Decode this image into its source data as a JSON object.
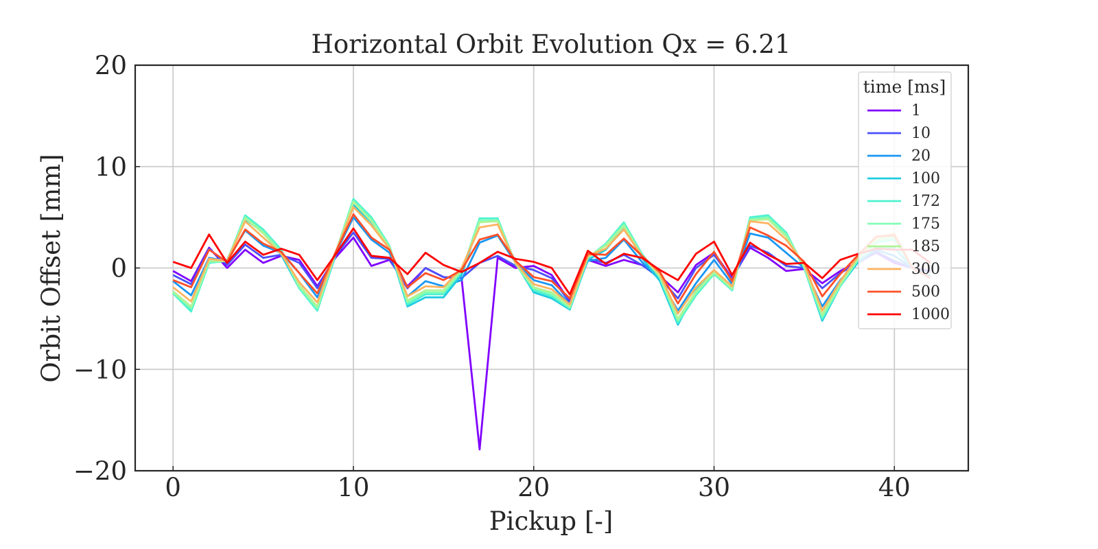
{
  "chart_data": {
    "type": "line",
    "title": "Horizontal Orbit Evolution Qx = 6.21",
    "xlabel": "Pickup [-]",
    "ylabel": "Orbit Offset [mm]",
    "xlim": [
      -2.1,
      44.1
    ],
    "ylim": [
      -20,
      20
    ],
    "xticks": [
      0,
      10,
      20,
      30,
      40
    ],
    "yticks": [
      -20,
      -10,
      0,
      10,
      20
    ],
    "xtick_labels": [
      "0",
      "10",
      "20",
      "30",
      "40"
    ],
    "ytick_labels": [
      "−20",
      "−10",
      "0",
      "10",
      "20"
    ],
    "grid": true,
    "legend": {
      "title": "time [ms]",
      "placement": "top-right"
    },
    "x": [
      0,
      1,
      2,
      3,
      4,
      5,
      6,
      7,
      8,
      9,
      10,
      11,
      12,
      13,
      14,
      15,
      16,
      17,
      18,
      19,
      20,
      21,
      22,
      23,
      24,
      25,
      26,
      27,
      28,
      29,
      30,
      31,
      32,
      33,
      34,
      35,
      36,
      37,
      38,
      39,
      40,
      41,
      42
    ],
    "series": [
      {
        "name": "1",
        "color": "#8000ff",
        "values": [
          -0.3,
          -1.3,
          2.0,
          0.0,
          1.8,
          0.5,
          1.2,
          0.8,
          -1.8,
          1.0,
          3.0,
          0.2,
          0.8,
          -1.8,
          0.0,
          -0.9,
          -1.0,
          -17.9,
          1.0,
          0.0,
          0.2,
          -0.7,
          -3.3,
          0.8,
          0.2,
          0.8,
          0.3,
          -0.8,
          -2.4,
          0.3,
          1.5,
          -1.0,
          2.0,
          1.0,
          -0.3,
          -0.1,
          -1.5,
          -0.3,
          0.6,
          1.5,
          0.5,
          0.0,
          -0.3
        ]
      },
      {
        "name": "10",
        "color": "#4b4ffc",
        "values": [
          -0.7,
          -1.6,
          1.9,
          0.3,
          2.3,
          1.0,
          1.3,
          0.5,
          -2.0,
          1.2,
          3.5,
          1.0,
          0.9,
          -2.0,
          0.0,
          -0.9,
          -1.0,
          0.5,
          1.2,
          0.2,
          -0.2,
          -1.0,
          -3.4,
          0.9,
          0.5,
          1.3,
          0.3,
          -1.0,
          -3.0,
          0.0,
          1.3,
          -1.1,
          2.2,
          1.5,
          0.2,
          0.0,
          -2.0,
          -0.5,
          0.5,
          1.6,
          0.7,
          0.0,
          -0.4
        ]
      },
      {
        "name": "20",
        "color": "#1996f3",
        "values": [
          -1.3,
          -2.7,
          1.0,
          0.7,
          3.7,
          2.2,
          1.5,
          -0.5,
          -2.9,
          1.4,
          5.0,
          2.8,
          1.5,
          -2.8,
          -1.3,
          -1.8,
          -1.2,
          2.5,
          3.2,
          0.5,
          -1.2,
          -1.7,
          -3.6,
          0.7,
          1.0,
          2.8,
          0.6,
          -1.2,
          -4.2,
          -1.5,
          0.8,
          -1.6,
          3.4,
          3.0,
          1.5,
          0.0,
          -3.8,
          -1.2,
          0.7,
          1.8,
          1.2,
          0.0,
          -0.8
        ]
      },
      {
        "name": "100",
        "color": "#1ecbe1",
        "values": [
          -2.3,
          -4.2,
          0.5,
          0.8,
          4.8,
          3.5,
          1.3,
          -2.0,
          -4.2,
          1.2,
          6.2,
          4.5,
          2.0,
          -3.8,
          -2.9,
          -2.9,
          -0.7,
          4.6,
          4.6,
          0.5,
          -2.4,
          -3.0,
          -4.1,
          0.8,
          1.8,
          4.0,
          1.0,
          -1.3,
          -5.6,
          -2.2,
          -0.3,
          -2.2,
          4.8,
          5.0,
          3.3,
          0.0,
          -5.2,
          -1.8,
          0.6,
          2.0,
          2.0,
          0.0,
          -1.0
        ]
      },
      {
        "name": "172",
        "color": "#4df3ce",
        "values": [
          -2.5,
          -4.3,
          0.5,
          0.7,
          5.2,
          3.8,
          1.8,
          -2.0,
          -4.2,
          1.4,
          6.8,
          5.0,
          2.2,
          -3.6,
          -2.6,
          -2.6,
          -0.4,
          4.9,
          4.9,
          0.4,
          -2.2,
          -2.8,
          -4.0,
          1.0,
          2.4,
          4.5,
          1.4,
          -1.0,
          -5.4,
          -2.7,
          -0.6,
          -2.2,
          5.0,
          5.2,
          3.5,
          0.0,
          -5.0,
          -1.8,
          0.8,
          2.5,
          2.8,
          0.0,
          -1.0
        ]
      },
      {
        "name": "175",
        "color": "#80ffb4",
        "values": [
          -2.4,
          -4.0,
          0.6,
          0.7,
          5.0,
          3.6,
          1.6,
          -1.9,
          -4.0,
          1.4,
          6.6,
          4.8,
          2.1,
          -3.4,
          -2.4,
          -2.4,
          -0.3,
          4.7,
          4.7,
          0.4,
          -2.0,
          -2.6,
          -3.9,
          1.0,
          2.3,
          4.3,
          1.3,
          -0.9,
          -5.2,
          -2.5,
          -0.5,
          -2.1,
          4.8,
          5.0,
          3.3,
          0.1,
          -4.8,
          -1.7,
          0.9,
          2.6,
          3.0,
          0.0,
          -1.0
        ]
      },
      {
        "name": "185",
        "color": "#b2f396",
        "values": [
          -2.3,
          -3.8,
          0.7,
          0.7,
          4.9,
          3.4,
          1.5,
          -1.7,
          -3.8,
          1.4,
          6.5,
          4.6,
          2.0,
          -3.2,
          -2.2,
          -2.2,
          -0.2,
          4.5,
          4.6,
          0.4,
          -1.9,
          -2.4,
          -3.8,
          1.1,
          2.2,
          4.1,
          1.2,
          -0.8,
          -5.0,
          -2.3,
          -0.4,
          -2.0,
          4.7,
          4.8,
          3.1,
          0.2,
          -4.6,
          -1.6,
          1.0,
          2.8,
          3.2,
          0.0,
          -1.0
        ]
      },
      {
        "name": "300",
        "color": "#ffb360",
        "values": [
          -1.9,
          -3.3,
          0.9,
          0.7,
          4.6,
          3.0,
          1.4,
          -1.4,
          -3.4,
          1.5,
          6.0,
          4.2,
          1.9,
          -2.8,
          -1.8,
          -1.9,
          0.0,
          4.0,
          4.3,
          0.5,
          -1.6,
          -2.1,
          -3.6,
          1.2,
          1.9,
          3.8,
          1.2,
          -0.6,
          -4.5,
          -1.9,
          -0.2,
          -1.8,
          4.6,
          4.4,
          2.8,
          0.4,
          -4.2,
          -1.3,
          1.2,
          3.0,
          3.4,
          0.0,
          -1.0
        ]
      },
      {
        "name": "500",
        "color": "#ff4f28",
        "values": [
          -1.2,
          -1.9,
          1.8,
          0.6,
          3.8,
          2.4,
          1.6,
          -0.5,
          -2.5,
          1.5,
          5.3,
          3.0,
          1.8,
          -1.9,
          -0.5,
          -1.2,
          -0.2,
          2.8,
          3.3,
          0.7,
          -0.9,
          -1.3,
          -3.0,
          1.4,
          1.3,
          2.9,
          1.2,
          -0.4,
          -3.5,
          -0.6,
          1.6,
          -1.3,
          4.0,
          3.2,
          2.2,
          0.6,
          -2.8,
          -0.6,
          1.3,
          3.1,
          3.2,
          0.0,
          -1.0
        ]
      },
      {
        "name": "1000",
        "color": "#ff0000",
        "values": [
          0.6,
          0.0,
          3.3,
          0.5,
          2.6,
          1.3,
          1.9,
          1.3,
          -1.2,
          1.3,
          3.9,
          1.2,
          1.0,
          -0.6,
          1.5,
          0.3,
          -0.4,
          0.5,
          1.6,
          0.9,
          0.6,
          0.0,
          -2.6,
          1.7,
          0.4,
          1.4,
          1.0,
          -0.2,
          -1.2,
          1.4,
          2.6,
          -0.7,
          2.5,
          1.3,
          0.4,
          0.5,
          -1.0,
          0.8,
          1.4,
          1.9,
          1.8,
          1.8,
          0.5
        ]
      }
    ]
  }
}
